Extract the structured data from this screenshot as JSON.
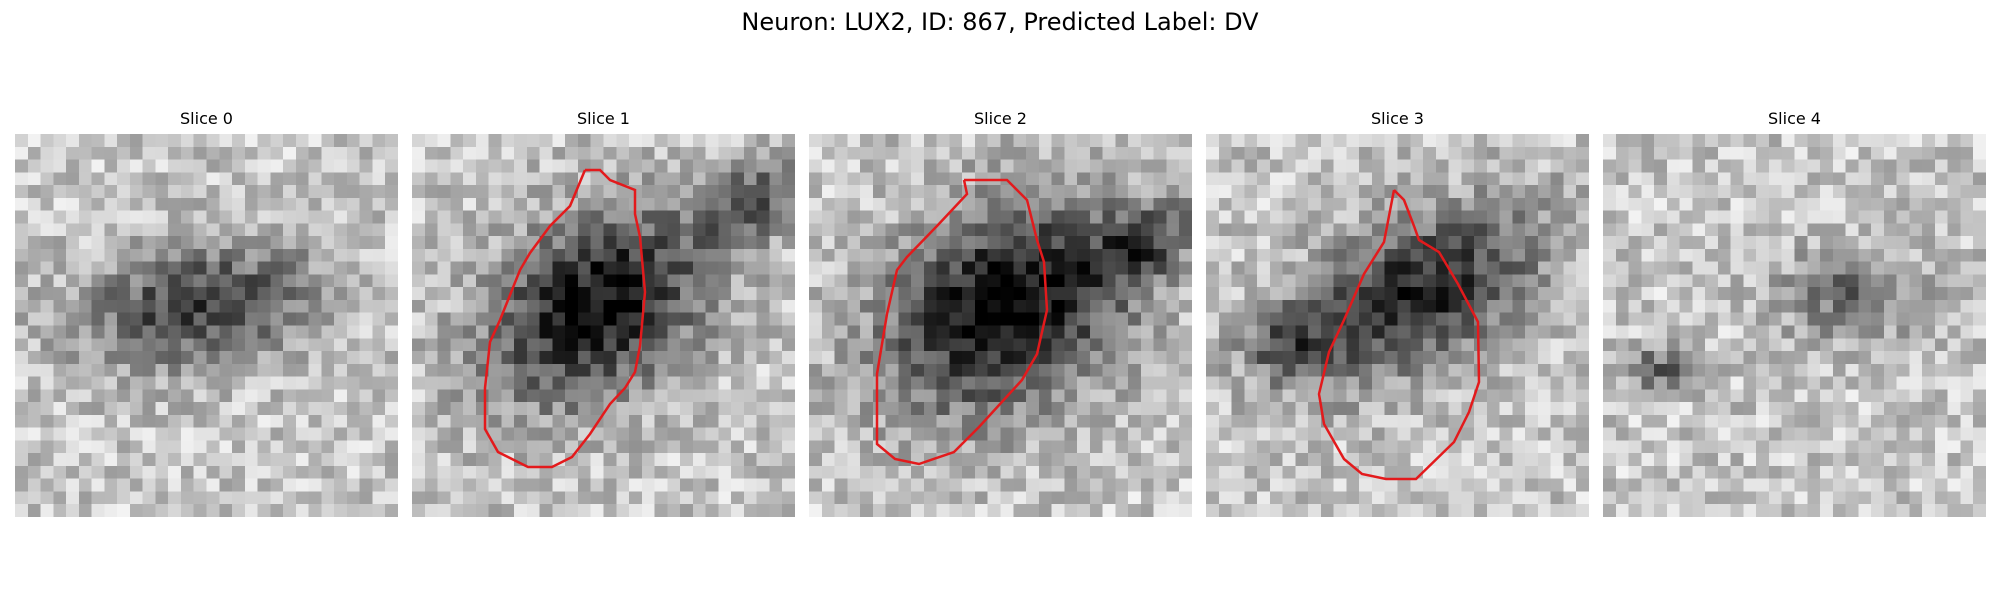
{
  "figure": {
    "title": "Neuron: LUX2, ID: 867, Predicted Label: DV"
  },
  "colors": {
    "contour": "#e31a1c",
    "background": "#ffffff"
  },
  "panels": [
    {
      "title": "Slice 0"
    },
    {
      "title": "Slice 1"
    },
    {
      "title": "Slice 2"
    },
    {
      "title": "Slice 3"
    },
    {
      "title": "Slice 4"
    }
  ]
}
